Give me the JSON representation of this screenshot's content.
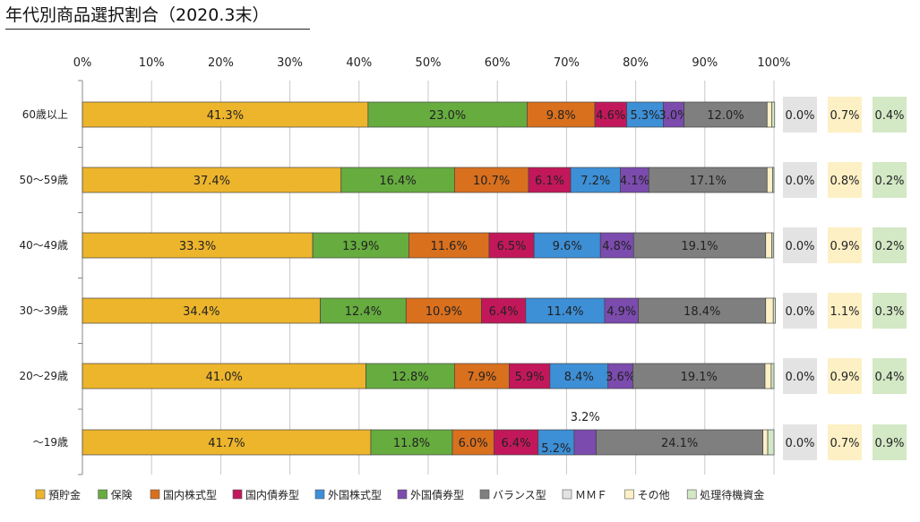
{
  "chart_data": {
    "type": "bar",
    "orientation": "horizontal",
    "stacked": true,
    "percent": true,
    "title": "年代別商品選択割合（2020.3末）",
    "xlim": [
      0,
      100
    ],
    "x_ticks": [
      "0%",
      "10%",
      "20%",
      "30%",
      "40%",
      "50%",
      "60%",
      "70%",
      "80%",
      "90%",
      "100%"
    ],
    "categories": [
      "60歳以上",
      "50～59歳",
      "40～49歳",
      "30～39歳",
      "20～29歳",
      "～19歳"
    ],
    "series": [
      {
        "name": "預貯金",
        "color": "#EDB52C",
        "values": [
          41.3,
          37.4,
          33.3,
          34.4,
          41.0,
          41.7
        ]
      },
      {
        "name": "保険",
        "color": "#66AC3F",
        "values": [
          23.0,
          16.4,
          13.9,
          12.4,
          12.8,
          11.8
        ]
      },
      {
        "name": "国内株式型",
        "color": "#D9701E",
        "values": [
          9.8,
          10.7,
          11.6,
          10.9,
          7.9,
          6.0
        ]
      },
      {
        "name": "国内債券型",
        "color": "#C2185B",
        "values": [
          4.6,
          6.1,
          6.5,
          6.4,
          5.9,
          6.4
        ]
      },
      {
        "name": "外国株式型",
        "color": "#3D8FD6",
        "values": [
          5.3,
          7.2,
          9.6,
          11.4,
          8.4,
          5.2
        ]
      },
      {
        "name": "外国債券型",
        "color": "#7B4BAE",
        "values": [
          3.0,
          4.1,
          4.8,
          4.9,
          3.6,
          3.2
        ]
      },
      {
        "name": "バランス型",
        "color": "#7F7F7F",
        "values": [
          12.0,
          17.1,
          19.1,
          18.4,
          19.1,
          24.1
        ]
      },
      {
        "name": "ＭＭＦ",
        "color": "#E3E3E3",
        "values": [
          0.0,
          0.0,
          0.0,
          0.0,
          0.0,
          0.0
        ]
      },
      {
        "name": "その他",
        "color": "#FDF0C4",
        "values": [
          0.7,
          0.8,
          0.9,
          1.1,
          0.9,
          0.7
        ]
      },
      {
        "name": "処理待機資金",
        "color": "#D3E8C5",
        "values": [
          0.4,
          0.2,
          0.2,
          0.3,
          0.4,
          0.9
        ]
      }
    ],
    "side_columns": [
      {
        "series": "ＭＭＦ",
        "labels": [
          "0.0%",
          "0.0%",
          "0.0%",
          "0.0%",
          "0.0%",
          "0.0%"
        ]
      },
      {
        "series": "その他",
        "labels": [
          "0.7%",
          "0.8%",
          "0.9%",
          "1.1%",
          "0.9%",
          "0.7%"
        ]
      },
      {
        "series": "処理待機資金",
        "labels": [
          "0.4%",
          "0.2%",
          "0.2%",
          "0.3%",
          "0.4%",
          "0.9%"
        ]
      }
    ],
    "legend_position": "bottom"
  }
}
